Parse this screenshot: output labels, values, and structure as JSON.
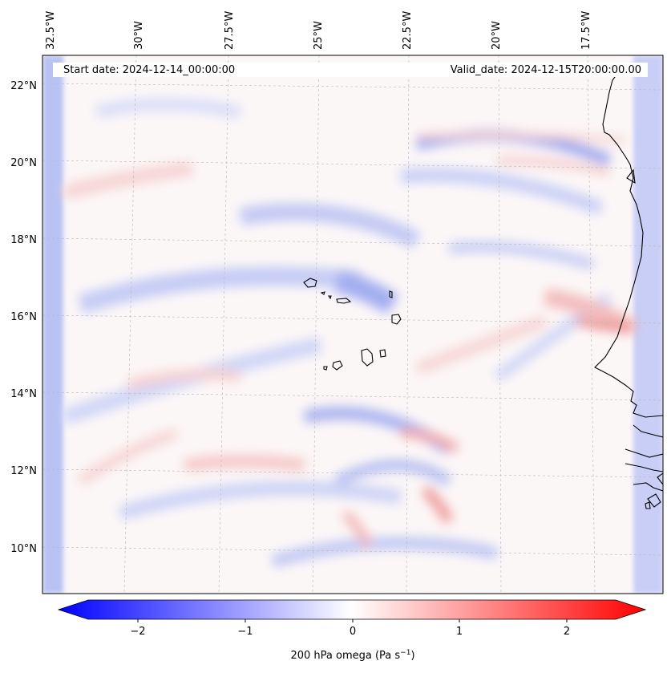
{
  "header": {
    "start_date": "Start date: 2024-12-14_00:00:00",
    "valid_date": "Valid_date: 2024-12-15T20:00:00.00"
  },
  "lon_labels": [
    "32.5°W",
    "30°W",
    "27.5°W",
    "25°W",
    "22.5°W",
    "20°W",
    "17.5°W"
  ],
  "lat_labels": [
    "22°N",
    "20°N",
    "18°N",
    "16°N",
    "14°N",
    "12°N",
    "10°N"
  ],
  "colorbar": {
    "ticks": [
      "−2",
      "−1",
      "0",
      "1",
      "2"
    ],
    "label": "200 hPa omega (Pa s",
    "label_sup": "−1",
    "label_end": ")",
    "range": [
      -2.6,
      2.6
    ],
    "low_color": "#0000ff",
    "mid_color": "#ffffff",
    "high_color": "#ff0000"
  },
  "colors": {
    "coastline": "#000000",
    "gridline": "#b0b0b0"
  }
}
